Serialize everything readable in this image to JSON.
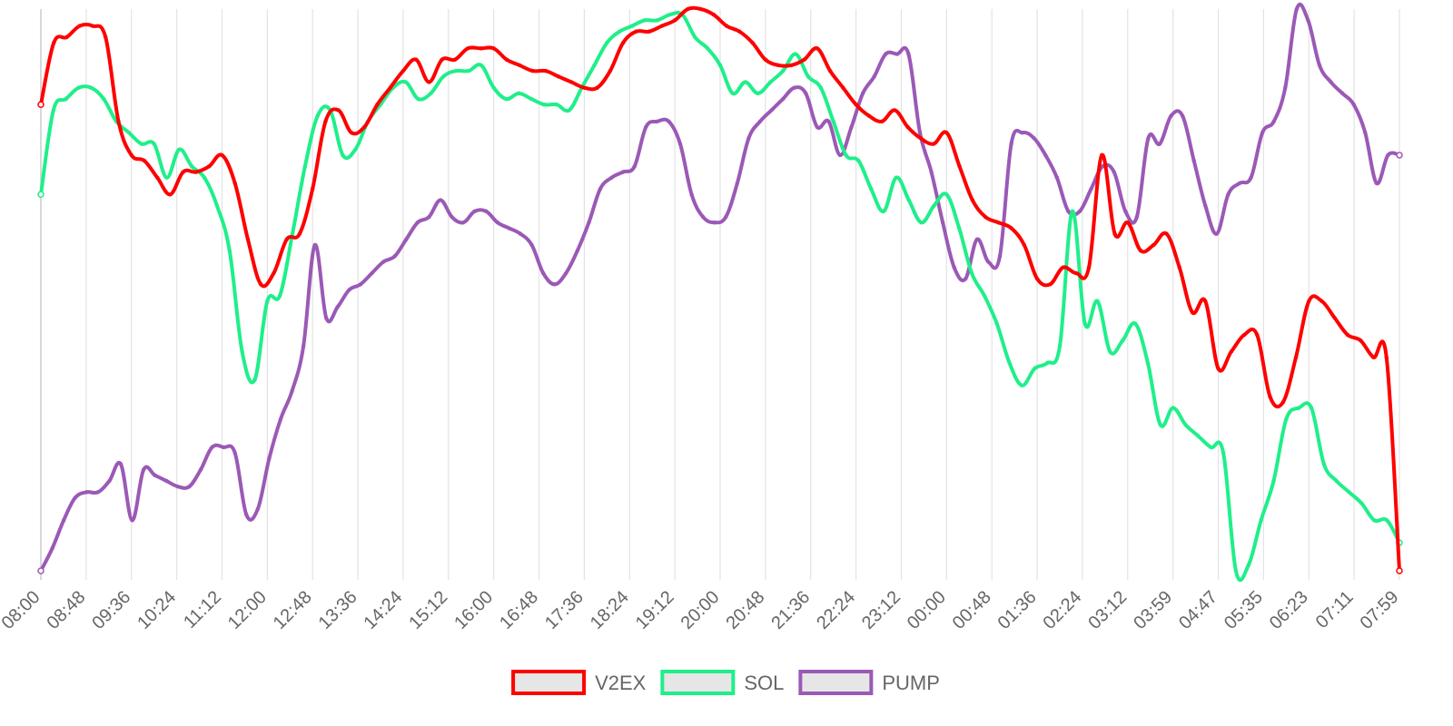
{
  "chart_data": {
    "type": "line",
    "title": "",
    "xlabel": "",
    "ylabel": "",
    "y_axis_visible": false,
    "ylim": [
      0,
      100
    ],
    "grid": "vertical",
    "legend_position": "bottom",
    "x_tick_labels": [
      "08:00",
      "08:48",
      "09:36",
      "10:24",
      "11:12",
      "12:00",
      "12:48",
      "13:36",
      "14:24",
      "15:12",
      "16:00",
      "16:48",
      "17:36",
      "18:24",
      "19:12",
      "20:00",
      "20:48",
      "21:36",
      "22:24",
      "23:12",
      "00:00",
      "00:48",
      "01:36",
      "02:24",
      "03:12",
      "03:59",
      "04:47",
      "05:35",
      "06:23",
      "07:11",
      "07:59"
    ],
    "series": [
      {
        "name": "V2EX",
        "color": "#ff0000",
        "values": [
          83,
          94,
          95,
          97,
          97,
          95,
          80,
          74,
          73,
          70,
          67,
          71,
          71,
          72,
          74,
          69,
          59,
          51,
          53,
          59,
          60,
          68,
          80,
          82,
          78,
          79,
          83,
          86,
          89,
          91,
          87,
          91,
          91,
          93,
          93,
          93,
          91,
          90,
          89,
          89,
          88,
          87,
          86,
          86,
          89,
          94,
          96,
          96,
          97,
          98,
          100,
          100,
          99,
          97,
          96,
          94,
          91,
          90,
          90,
          91,
          93,
          89,
          86,
          83,
          81,
          80,
          82,
          79,
          77,
          76,
          78,
          72,
          66,
          63,
          62,
          61,
          58,
          52,
          51,
          54,
          53,
          54,
          74,
          60,
          62,
          57,
          58,
          60,
          54,
          46,
          48,
          36,
          39,
          42,
          42,
          31,
          30,
          38,
          48,
          48,
          45,
          42,
          41,
          38,
          38,
          0
        ]
      },
      {
        "name": "SOL",
        "color": "#1fef8a",
        "values": [
          67,
          82,
          84,
          86,
          86,
          84,
          80,
          78,
          76,
          76,
          70,
          75,
          72,
          70,
          65,
          57,
          39,
          34,
          48,
          49,
          60,
          72,
          81,
          82,
          74,
          75,
          80,
          83,
          86,
          87,
          84,
          85,
          88,
          89,
          89,
          90,
          86,
          84,
          85,
          84,
          83,
          83,
          82,
          86,
          90,
          94,
          96,
          97,
          98,
          98,
          99,
          99,
          95,
          93,
          90,
          85,
          87,
          85,
          87,
          89,
          92,
          88,
          86,
          80,
          74,
          73,
          68,
          64,
          70,
          66,
          62,
          65,
          67,
          61,
          53,
          49,
          44,
          37,
          33,
          36,
          37,
          40,
          64,
          44,
          48,
          39,
          41,
          44,
          37,
          26,
          29,
          26,
          24,
          22,
          21,
          0,
          1,
          9,
          16,
          27,
          29,
          29,
          19,
          16,
          14,
          12,
          9,
          9,
          5
        ]
      },
      {
        "name": "PUMP",
        "color": "#9b59b6",
        "values": [
          0,
          4,
          9,
          13,
          14,
          14,
          16,
          19,
          9,
          18,
          17,
          16,
          15,
          15,
          18,
          22,
          22,
          21,
          10,
          11,
          20,
          27,
          32,
          40,
          58,
          45,
          47,
          50,
          51,
          53,
          55,
          56,
          59,
          62,
          63,
          66,
          63,
          62,
          64,
          64,
          62,
          61,
          60,
          58,
          53,
          51,
          53,
          57,
          62,
          68,
          70,
          71,
          72,
          79,
          80,
          80,
          76,
          67,
          63,
          62,
          63,
          69,
          77,
          80,
          82,
          84,
          86,
          85,
          79,
          80,
          74,
          79,
          85,
          88,
          92,
          92,
          92,
          78,
          71,
          62,
          54,
          52,
          59,
          55,
          56,
          76,
          78,
          77,
          74,
          70,
          64,
          64,
          68,
          72,
          71,
          64,
          63,
          77,
          76,
          81,
          81,
          73,
          65,
          60,
          67,
          69,
          70,
          78,
          80,
          86,
          100,
          98,
          90,
          87,
          85,
          83,
          78,
          69,
          74,
          74
        ]
      }
    ]
  }
}
